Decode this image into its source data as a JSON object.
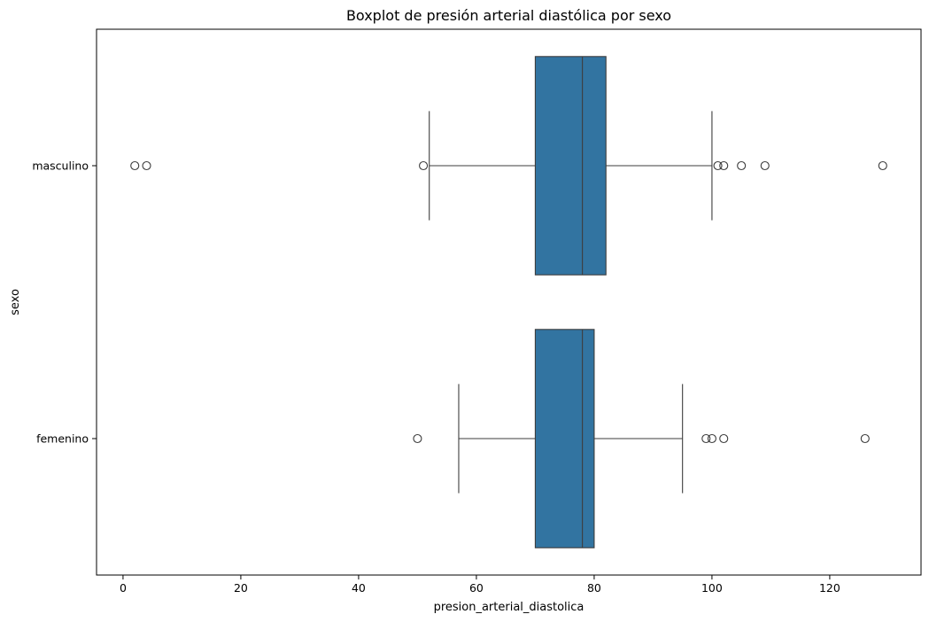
{
  "chart_data": {
    "type": "boxplot",
    "orientation": "horizontal",
    "title": "Boxplot de presión arterial diastólica por sexo",
    "xlabel": "presion_arterial_diastolica",
    "ylabel": "sexo",
    "xlim": [
      -4.5,
      135.5
    ],
    "xticks": [
      0,
      20,
      40,
      60,
      80,
      100,
      120
    ],
    "grid": false,
    "box_color": "#3274a1",
    "line_color": "#3d3d3d",
    "groups": [
      {
        "label": "masculino",
        "whisker_low": 52,
        "q1": 70,
        "median": 78,
        "q3": 82,
        "whisker_high": 100,
        "outliers": [
          2,
          4,
          51,
          101,
          102,
          105,
          109,
          129
        ]
      },
      {
        "label": "femenino",
        "whisker_low": 57,
        "q1": 70,
        "median": 78,
        "q3": 80,
        "whisker_high": 95,
        "outliers": [
          50,
          99,
          100,
          102,
          126
        ]
      }
    ]
  }
}
